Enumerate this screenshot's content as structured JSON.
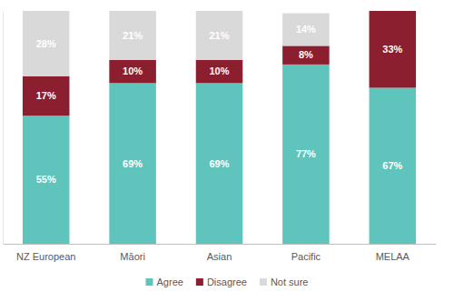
{
  "chart_data": {
    "type": "bar",
    "stacked": true,
    "data_labels": true,
    "tick_labels": "x",
    "legend": "bottom",
    "categories": [
      "NZ European",
      "Māori",
      "Asian",
      "Pacific",
      "MELAA"
    ],
    "ylim": [
      0,
      100
    ],
    "series": [
      {
        "name": "Agree",
        "color": "#5fc4bc",
        "values": [
          55,
          69,
          69,
          77,
          67
        ],
        "value_labels": [
          "55%",
          "69%",
          "69%",
          "77%",
          "67%"
        ]
      },
      {
        "name": "Disagree",
        "color": "#8b1e2f",
        "values": [
          17,
          10,
          10,
          8,
          33
        ],
        "value_labels": [
          "17%",
          "10%",
          "10%",
          "8%",
          "33%"
        ]
      },
      {
        "name": "Not sure",
        "color": "#d9d9d9",
        "values": [
          28,
          21,
          21,
          14,
          null
        ],
        "value_labels": [
          "28%",
          "21%",
          "21%",
          "14%",
          null
        ]
      }
    ]
  }
}
